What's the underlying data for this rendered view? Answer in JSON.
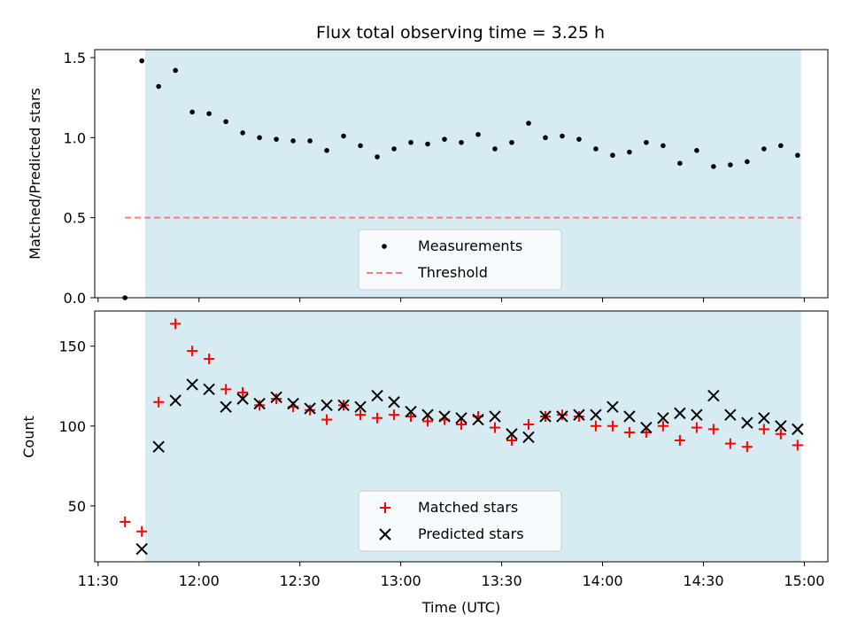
{
  "chart_data": {
    "title": "Flux total observing time = 3.25 h",
    "xlabel": "Time (UTC)",
    "x_ticks": [
      "11:30",
      "12:00",
      "12:30",
      "13:00",
      "13:30",
      "14:00",
      "14:30",
      "15:00"
    ],
    "x_range": [
      "11:29",
      "15:07"
    ],
    "shaded_span": [
      "11:44",
      "14:59"
    ],
    "shade_color": "#add8e6",
    "panels": [
      {
        "type": "scatter",
        "ylabel": "Matched/Predicted stars",
        "ylim": [
          0,
          1.55
        ],
        "yticks": [
          "0.0",
          "0.5",
          "1.0",
          "1.5"
        ],
        "legend_position": "lower-center",
        "series": [
          {
            "name": "Measurements",
            "marker": "dot",
            "color": "#000000",
            "x": [
              "11:38",
              "11:43",
              "11:48",
              "11:53",
              "11:58",
              "12:03",
              "12:08",
              "12:13",
              "12:18",
              "12:23",
              "12:28",
              "12:33",
              "12:38",
              "12:43",
              "12:48",
              "12:53",
              "12:58",
              "13:03",
              "13:08",
              "13:13",
              "13:18",
              "13:23",
              "13:28",
              "13:33",
              "13:38",
              "13:43",
              "13:48",
              "13:53",
              "13:58",
              "14:03",
              "14:08",
              "14:13",
              "14:18",
              "14:23",
              "14:28",
              "14:33",
              "14:38",
              "14:43",
              "14:48",
              "14:53",
              "14:58"
            ],
            "y": [
              0.0,
              1.48,
              1.32,
              1.42,
              1.16,
              1.15,
              1.1,
              1.03,
              1.0,
              0.99,
              0.98,
              0.98,
              0.92,
              1.01,
              0.95,
              0.88,
              0.93,
              0.97,
              0.96,
              0.99,
              0.97,
              1.02,
              0.93,
              0.97,
              1.09,
              1.0,
              1.01,
              0.99,
              0.93,
              0.89,
              0.91,
              0.97,
              0.95,
              0.84,
              0.92,
              0.82,
              0.83,
              0.85,
              0.93,
              0.95,
              0.89
            ]
          }
        ],
        "threshold": {
          "name": "Threshold",
          "value": 0.5,
          "from": "11:38",
          "to": "14:59",
          "color": "#f08080"
        }
      },
      {
        "type": "scatter",
        "ylabel": "Count",
        "ylim": [
          15,
          172
        ],
        "yticks": [
          "50",
          "100",
          "150"
        ],
        "legend_position": "lower-center",
        "series": [
          {
            "name": "Matched stars",
            "marker": "plus",
            "color": "#ff0000",
            "x": [
              "11:38",
              "11:43",
              "11:48",
              "11:53",
              "11:58",
              "12:03",
              "12:08",
              "12:13",
              "12:18",
              "12:23",
              "12:28",
              "12:33",
              "12:38",
              "12:43",
              "12:48",
              "12:53",
              "12:58",
              "13:03",
              "13:08",
              "13:13",
              "13:18",
              "13:23",
              "13:28",
              "13:33",
              "13:38",
              "13:43",
              "13:48",
              "13:53",
              "13:58",
              "14:03",
              "14:08",
              "14:13",
              "14:18",
              "14:23",
              "14:28",
              "14:33",
              "14:38",
              "14:43",
              "14:48",
              "14:53",
              "14:58"
            ],
            "y": [
              40,
              34,
              115,
              164,
              147,
              142,
              123,
              121,
              113,
              117,
              112,
              110,
              104,
              113,
              107,
              105,
              107,
              106,
              103,
              104,
              101,
              106,
              99,
              91,
              101,
              106,
              107,
              106,
              100,
              100,
              96,
              96,
              100,
              91,
              99,
              98,
              89,
              87,
              98,
              95,
              88
            ]
          },
          {
            "name": "Predicted stars",
            "marker": "x",
            "color": "#000000",
            "x": [
              "11:43",
              "11:48",
              "11:53",
              "11:58",
              "12:03",
              "12:08",
              "12:13",
              "12:18",
              "12:23",
              "12:28",
              "12:33",
              "12:38",
              "12:43",
              "12:48",
              "12:53",
              "12:58",
              "13:03",
              "13:08",
              "13:13",
              "13:18",
              "13:23",
              "13:28",
              "13:33",
              "13:38",
              "13:43",
              "13:48",
              "13:53",
              "13:58",
              "14:03",
              "14:08",
              "14:13",
              "14:18",
              "14:23",
              "14:28",
              "14:33",
              "14:38",
              "14:43",
              "14:48",
              "14:53",
              "14:58"
            ],
            "y": [
              23,
              87,
              116,
              126,
              123,
              112,
              117,
              114,
              118,
              114,
              111,
              113,
              113,
              112,
              119,
              115,
              109,
              107,
              106,
              105,
              104,
              106,
              95,
              93,
              106,
              106,
              107,
              107,
              112,
              106,
              99,
              105,
              108,
              107,
              119,
              107,
              102,
              105,
              100,
              98
            ]
          }
        ]
      }
    ]
  }
}
